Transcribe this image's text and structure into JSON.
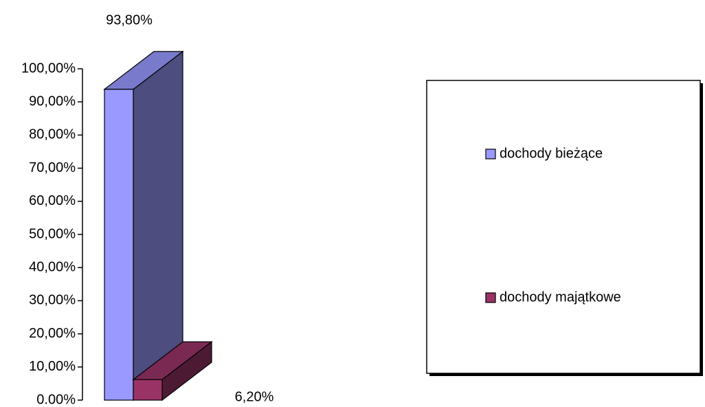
{
  "chart_data": {
    "type": "bar3d",
    "series": [
      {
        "name": "dochody bieżące",
        "color": "#9999ff",
        "values": [
          93.8
        ],
        "value_labels": [
          "93,80%"
        ]
      },
      {
        "name": "dochody majątkowe",
        "color": "#993366",
        "values": [
          6.2
        ],
        "value_labels": [
          "6,20%"
        ]
      }
    ],
    "ylim": [
      0,
      100
    ],
    "yticks": [
      {
        "value": 0,
        "label": "0.00%"
      },
      {
        "value": 10,
        "label": "10,00%"
      },
      {
        "value": 20,
        "label": "20,00%"
      },
      {
        "value": 30,
        "label": "30,00%"
      },
      {
        "value": 40,
        "label": "40,00%"
      },
      {
        "value": 50,
        "label": "50,00%"
      },
      {
        "value": 60,
        "label": "60,00%"
      },
      {
        "value": 70,
        "label": "70,00%"
      },
      {
        "value": 80,
        "label": "80,00%"
      },
      {
        "value": 90,
        "label": "90,00%"
      },
      {
        "value": 100,
        "label": "100,00%"
      }
    ],
    "legend": "right"
  }
}
